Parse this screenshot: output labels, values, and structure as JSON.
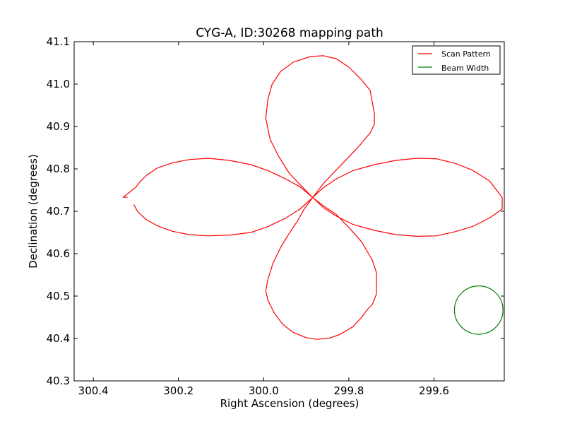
{
  "chart_data": {
    "type": "line",
    "title": "CYG-A, ID:30268 mapping path",
    "xlabel": "Right Ascension (degrees)",
    "ylabel": "Declination (degrees)",
    "xlim": [
      300.445,
      299.435
    ],
    "ylim": [
      40.3,
      41.1
    ],
    "x_ticks": [
      300.4,
      300.2,
      300.0,
      299.8,
      299.6
    ],
    "x_tick_labels": [
      "300.4",
      "300.2",
      "300.0",
      "299.8",
      "299.6"
    ],
    "y_ticks": [
      40.3,
      40.4,
      40.5,
      40.6,
      40.7,
      40.8,
      40.9,
      41.0,
      41.1
    ],
    "y_tick_labels": [
      "40.3",
      "40.4",
      "40.5",
      "40.6",
      "40.7",
      "40.8",
      "40.9",
      "41.0",
      "41.1"
    ],
    "legend_position": "top-right",
    "series": [
      {
        "name": "Scan Pattern",
        "color": "#ff0000",
        "points": [
          [
            300.305,
            40.716
          ],
          [
            300.295,
            40.698
          ],
          [
            300.275,
            40.68
          ],
          [
            300.25,
            40.666
          ],
          [
            300.215,
            40.653
          ],
          [
            300.175,
            40.645
          ],
          [
            300.13,
            40.642
          ],
          [
            300.08,
            40.644
          ],
          [
            300.03,
            40.65
          ],
          [
            299.99,
            40.664
          ],
          [
            299.95,
            40.683
          ],
          [
            299.915,
            40.705
          ],
          [
            299.885,
            40.7325
          ],
          [
            299.86,
            40.7555
          ],
          [
            299.83,
            40.776
          ],
          [
            299.79,
            40.796
          ],
          [
            299.74,
            40.81
          ],
          [
            299.69,
            40.82
          ],
          [
            299.64,
            40.825
          ],
          [
            299.595,
            40.824
          ],
          [
            299.55,
            40.813
          ],
          [
            299.51,
            40.797
          ],
          [
            299.47,
            40.772
          ],
          [
            299.44,
            40.733
          ],
          [
            299.44,
            40.705
          ],
          [
            299.47,
            40.684
          ],
          [
            299.51,
            40.664
          ],
          [
            299.55,
            40.652
          ],
          [
            299.595,
            40.642
          ],
          [
            299.64,
            40.641
          ],
          [
            299.69,
            40.645
          ],
          [
            299.74,
            40.655
          ],
          [
            299.79,
            40.669
          ],
          [
            299.83,
            40.689
          ],
          [
            299.86,
            40.709
          ],
          [
            299.885,
            40.7325
          ],
          [
            299.905,
            40.705
          ],
          [
            299.92,
            40.678
          ],
          [
            299.94,
            40.648
          ],
          [
            299.96,
            40.615
          ],
          [
            299.978,
            40.578
          ],
          [
            299.99,
            40.54
          ],
          [
            299.995,
            40.512
          ],
          [
            299.99,
            40.49
          ],
          [
            299.975,
            40.46
          ],
          [
            299.955,
            40.433
          ],
          [
            299.93,
            40.414
          ],
          [
            299.9,
            40.402
          ],
          [
            299.875,
            40.398
          ],
          [
            299.845,
            40.401
          ],
          [
            299.82,
            40.41
          ],
          [
            299.79,
            40.428
          ],
          [
            299.77,
            40.45
          ],
          [
            299.755,
            40.47
          ],
          [
            299.745,
            40.48
          ],
          [
            299.735,
            40.505
          ],
          [
            299.735,
            40.555
          ],
          [
            299.745,
            40.585
          ],
          [
            299.77,
            40.628
          ],
          [
            299.8,
            40.662
          ],
          [
            299.83,
            40.693
          ],
          [
            299.86,
            40.713
          ],
          [
            299.885,
            40.7325
          ],
          [
            299.91,
            40.758
          ],
          [
            299.94,
            40.79
          ],
          [
            299.965,
            40.83
          ],
          [
            299.985,
            40.87
          ],
          [
            299.995,
            40.92
          ],
          [
            299.99,
            40.965
          ],
          [
            299.98,
            41.0
          ],
          [
            299.96,
            41.03
          ],
          [
            299.93,
            41.052
          ],
          [
            299.89,
            41.065
          ],
          [
            299.86,
            41.067
          ],
          [
            299.83,
            41.06
          ],
          [
            299.8,
            41.04
          ],
          [
            299.77,
            41.01
          ],
          [
            299.75,
            40.985
          ],
          [
            299.74,
            40.93
          ],
          [
            299.74,
            40.905
          ],
          [
            299.75,
            40.885
          ],
          [
            299.775,
            40.855
          ],
          [
            299.8,
            40.828
          ],
          [
            299.83,
            40.797
          ],
          [
            299.86,
            40.765
          ],
          [
            299.885,
            40.7325
          ],
          [
            299.915,
            40.758
          ],
          [
            299.95,
            40.777
          ],
          [
            299.99,
            40.796
          ],
          [
            300.03,
            40.81
          ],
          [
            300.08,
            40.82
          ],
          [
            300.13,
            40.825
          ],
          [
            300.175,
            40.822
          ],
          [
            300.215,
            40.814
          ],
          [
            300.25,
            40.802
          ],
          [
            300.275,
            40.785
          ],
          [
            300.29,
            40.77
          ],
          [
            300.3,
            40.757
          ],
          [
            300.31,
            40.749
          ],
          [
            300.33,
            40.733
          ],
          [
            300.32,
            40.733
          ]
        ]
      },
      {
        "name": "Beam Width",
        "color": "#008000",
        "shape": "circle",
        "center": [
          299.495,
          40.467
        ],
        "radius_x": 0.057,
        "radius_y": 0.057
      }
    ]
  }
}
